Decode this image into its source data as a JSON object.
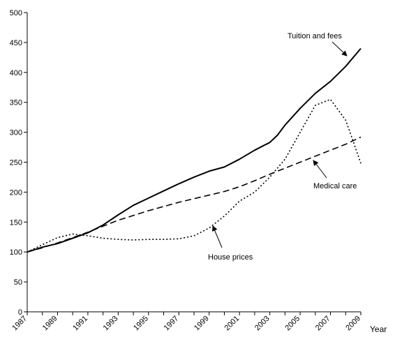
{
  "chart_data": {
    "type": "line",
    "title": "",
    "xlabel": "Year",
    "ylabel": "",
    "xlim": [
      1987,
      2009
    ],
    "ylim": [
      0,
      500
    ],
    "y_ticks": [
      0,
      50,
      100,
      150,
      200,
      250,
      300,
      350,
      400,
      450,
      500
    ],
    "x_ticks": [
      1987,
      1989,
      1991,
      1993,
      1995,
      1997,
      1999,
      2001,
      2003,
      2005,
      2007,
      2009
    ],
    "grid": false,
    "legend": "none",
    "series": [
      {
        "name": "Tuition and fees",
        "line_style": "solid",
        "color": "#000000",
        "x": [
          1987,
          1988,
          1989,
          1990,
          1991,
          1992,
          1993,
          1994,
          1995,
          1996,
          1997,
          1998,
          1999,
          2000,
          2001,
          2002,
          2003,
          2003.5,
          2004,
          2005,
          2006,
          2007,
          2008,
          2009
        ],
        "values": [
          100,
          108,
          114,
          123,
          132,
          145,
          162,
          178,
          190,
          202,
          214,
          225,
          235,
          242,
          255,
          270,
          283,
          295,
          312,
          340,
          365,
          385,
          410,
          440
        ]
      },
      {
        "name": "Medical care",
        "line_style": "dashed",
        "color": "#000000",
        "x": [
          1987,
          1988,
          1989,
          1990,
          1991,
          1992,
          1993,
          1994,
          1995,
          1996,
          1997,
          1998,
          1999,
          2000,
          2001,
          2002,
          2003,
          2004,
          2005,
          2006,
          2007,
          2008,
          2009
        ],
        "values": [
          100,
          107,
          115,
          124,
          133,
          143,
          153,
          161,
          169,
          176,
          183,
          189,
          195,
          201,
          209,
          219,
          230,
          240,
          250,
          260,
          270,
          280,
          292
        ]
      },
      {
        "name": "House prices",
        "line_style": "dotted",
        "color": "#000000",
        "x": [
          1987,
          1988,
          1989,
          1990,
          1991,
          1992,
          1993,
          1994,
          1995,
          1996,
          1997,
          1998,
          1999,
          2000,
          2001,
          2002,
          2003,
          2004,
          2005,
          2006,
          2007,
          2008,
          2008.5,
          2009
        ],
        "values": [
          100,
          112,
          124,
          130,
          127,
          123,
          121,
          120,
          121,
          121,
          122,
          127,
          140,
          160,
          185,
          200,
          225,
          255,
          300,
          345,
          355,
          320,
          285,
          248
        ]
      }
    ],
    "annotations": [
      {
        "text": "Tuition and fees",
        "series": "Tuition and fees"
      },
      {
        "text": "Medical care",
        "series": "Medical care"
      },
      {
        "text": "House prices",
        "series": "House prices"
      }
    ]
  }
}
